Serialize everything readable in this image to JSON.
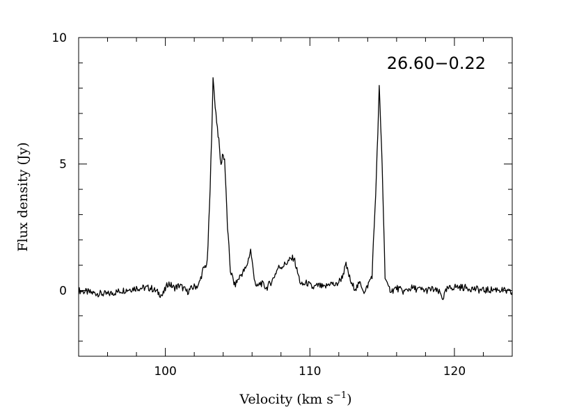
{
  "chart_data": {
    "type": "line",
    "title": "",
    "source_name": "26.60−0.22",
    "xlabel": "Velocity (km s",
    "xlabel_superscript": "−1",
    "xlabel_close": ")",
    "ylabel": "Flux density (Jy)",
    "xlim": [
      94,
      124
    ],
    "ylim": [
      -2.6,
      10
    ],
    "x_ticks": [
      100,
      110,
      120
    ],
    "x_tick_labels": [
      "100",
      "110",
      "120"
    ],
    "y_ticks": [
      0,
      5,
      10
    ],
    "y_tick_labels": [
      "0",
      "5",
      "10"
    ],
    "x_minor_step": 2,
    "y_minor_step": 1,
    "grid": false,
    "series": [
      {
        "color": "#000000",
        "x": [
          94.0,
          95.0,
          96.0,
          97.0,
          98.0,
          99.0,
          99.8,
          100.2,
          100.6,
          101.0,
          101.5,
          102.0,
          102.3,
          102.6,
          102.9,
          103.1,
          103.3,
          103.5,
          103.7,
          103.85,
          103.95,
          104.1,
          104.3,
          104.5,
          104.8,
          105.2,
          105.6,
          105.9,
          106.1,
          106.3,
          106.6,
          107.0,
          107.4,
          107.8,
          108.2,
          108.6,
          108.9,
          109.1,
          109.4,
          109.8,
          110.2,
          110.6,
          111.0,
          111.4,
          111.8,
          112.2,
          112.5,
          112.7,
          112.9,
          113.2,
          113.5,
          113.8,
          114.0,
          114.3,
          114.6,
          114.8,
          115.0,
          115.2,
          115.4,
          115.7,
          116.0,
          116.5,
          117.0,
          118.0,
          118.5,
          119.0,
          119.2,
          119.5,
          120.0,
          121.0,
          122.0,
          123.0,
          124.0
        ],
        "y": [
          0.0,
          -0.1,
          -0.15,
          0.0,
          0.1,
          0.1,
          -0.2,
          0.3,
          0.1,
          0.2,
          -0.05,
          0.15,
          0.2,
          0.8,
          1.1,
          4.0,
          8.3,
          7.0,
          5.9,
          4.9,
          5.4,
          5.2,
          2.5,
          0.8,
          0.2,
          0.6,
          0.9,
          1.6,
          0.7,
          0.1,
          0.3,
          0.1,
          0.4,
          0.9,
          1.0,
          1.2,
          1.3,
          0.8,
          0.2,
          0.3,
          0.1,
          0.2,
          0.1,
          0.3,
          0.2,
          0.5,
          1.0,
          0.6,
          0.2,
          0.1,
          0.3,
          -0.1,
          0.2,
          0.6,
          4.5,
          8.0,
          5.0,
          0.6,
          0.1,
          0.0,
          0.1,
          -0.05,
          0.1,
          0.0,
          0.05,
          -0.1,
          -0.3,
          0.05,
          0.15,
          0.1,
          0.0,
          0.05,
          -0.1
        ]
      }
    ]
  }
}
